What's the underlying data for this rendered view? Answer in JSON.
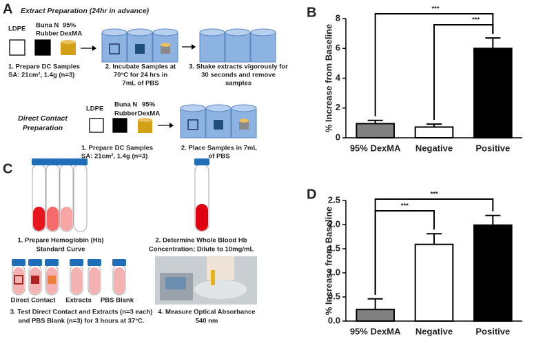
{
  "panel_a": {
    "label": "A",
    "title": "Extract Preparation (24hr in advance)",
    "materials": [
      "LDPE",
      "Buna N",
      "Rubber",
      "95%",
      "DexMA"
    ],
    "step1": [
      "1.  Prepare DC Samples",
      "SA: 21cm², 1.4g (n=3)"
    ],
    "step2": [
      "2. Incubate Samples at",
      "70°C for 24 hrs in",
      "7mL of PBS"
    ],
    "step3": [
      "3. Shake extracts vigorously for",
      "30 seconds and remove",
      "samples"
    ],
    "direct_title": [
      "Direct Contact",
      "Preparation"
    ],
    "direct_materials": [
      "LDPE",
      "Buna N",
      "Rubber",
      "95%",
      "DexMA"
    ],
    "direct_step1": [
      "1.  Prepare DC Samples",
      "SA: 21cm², 1.4g (n=3)"
    ],
    "direct_step2": [
      "2. Place Samples in 7mL",
      "of PBS"
    ]
  },
  "panel_c": {
    "label": "C",
    "step1": [
      "1.  Prepare Hemoglobin (Hb)",
      "Standard Curve"
    ],
    "step2": [
      "2. Determine Whole Blood Hb",
      "Concentration; Dilute to 10mg/mL"
    ],
    "tube_labels": [
      "Direct Contact",
      "Extracts",
      "PBS Blank"
    ],
    "step3": [
      "3. Test Direct Contact and Extracts (n=3 each)",
      "and PBS Blank (n=3) for 3 hours at 37°C."
    ],
    "step4": [
      "4. Measure Optical Absorbance",
      "540 nm"
    ]
  },
  "chart_data": [
    {
      "type": "bar",
      "panel": "B",
      "ylabel": "% Increase from Baseline",
      "categories": [
        "95% DexMA",
        "Negative",
        "Positive"
      ],
      "values": [
        0.95,
        0.72,
        6.0
      ],
      "errors": [
        0.22,
        0.2,
        0.7
      ],
      "colors": [
        "#808080",
        "#ffffff",
        "#000000"
      ],
      "ylim": [
        0,
        8
      ],
      "yticks": [
        0,
        2,
        4,
        6,
        8
      ],
      "annotations": [
        "***",
        "***"
      ]
    },
    {
      "type": "bar",
      "panel": "D",
      "ylabel": "% Increase from Baseline",
      "categories": [
        "95% DexMA",
        "Negative",
        "Positive"
      ],
      "values": [
        0.24,
        1.59,
        1.99
      ],
      "errors": [
        0.22,
        0.22,
        0.2
      ],
      "colors": [
        "#808080",
        "#ffffff",
        "#000000"
      ],
      "ylim": [
        0,
        2.5
      ],
      "yticks": [
        {
          "value": 0,
          "label": "0.0"
        },
        0.5,
        {
          "value": 1,
          "label": "1.0"
        },
        1.5,
        {
          "value": 2,
          "label": "2.0"
        },
        2.5
      ],
      "annotations": [
        "***",
        "***"
      ]
    }
  ]
}
